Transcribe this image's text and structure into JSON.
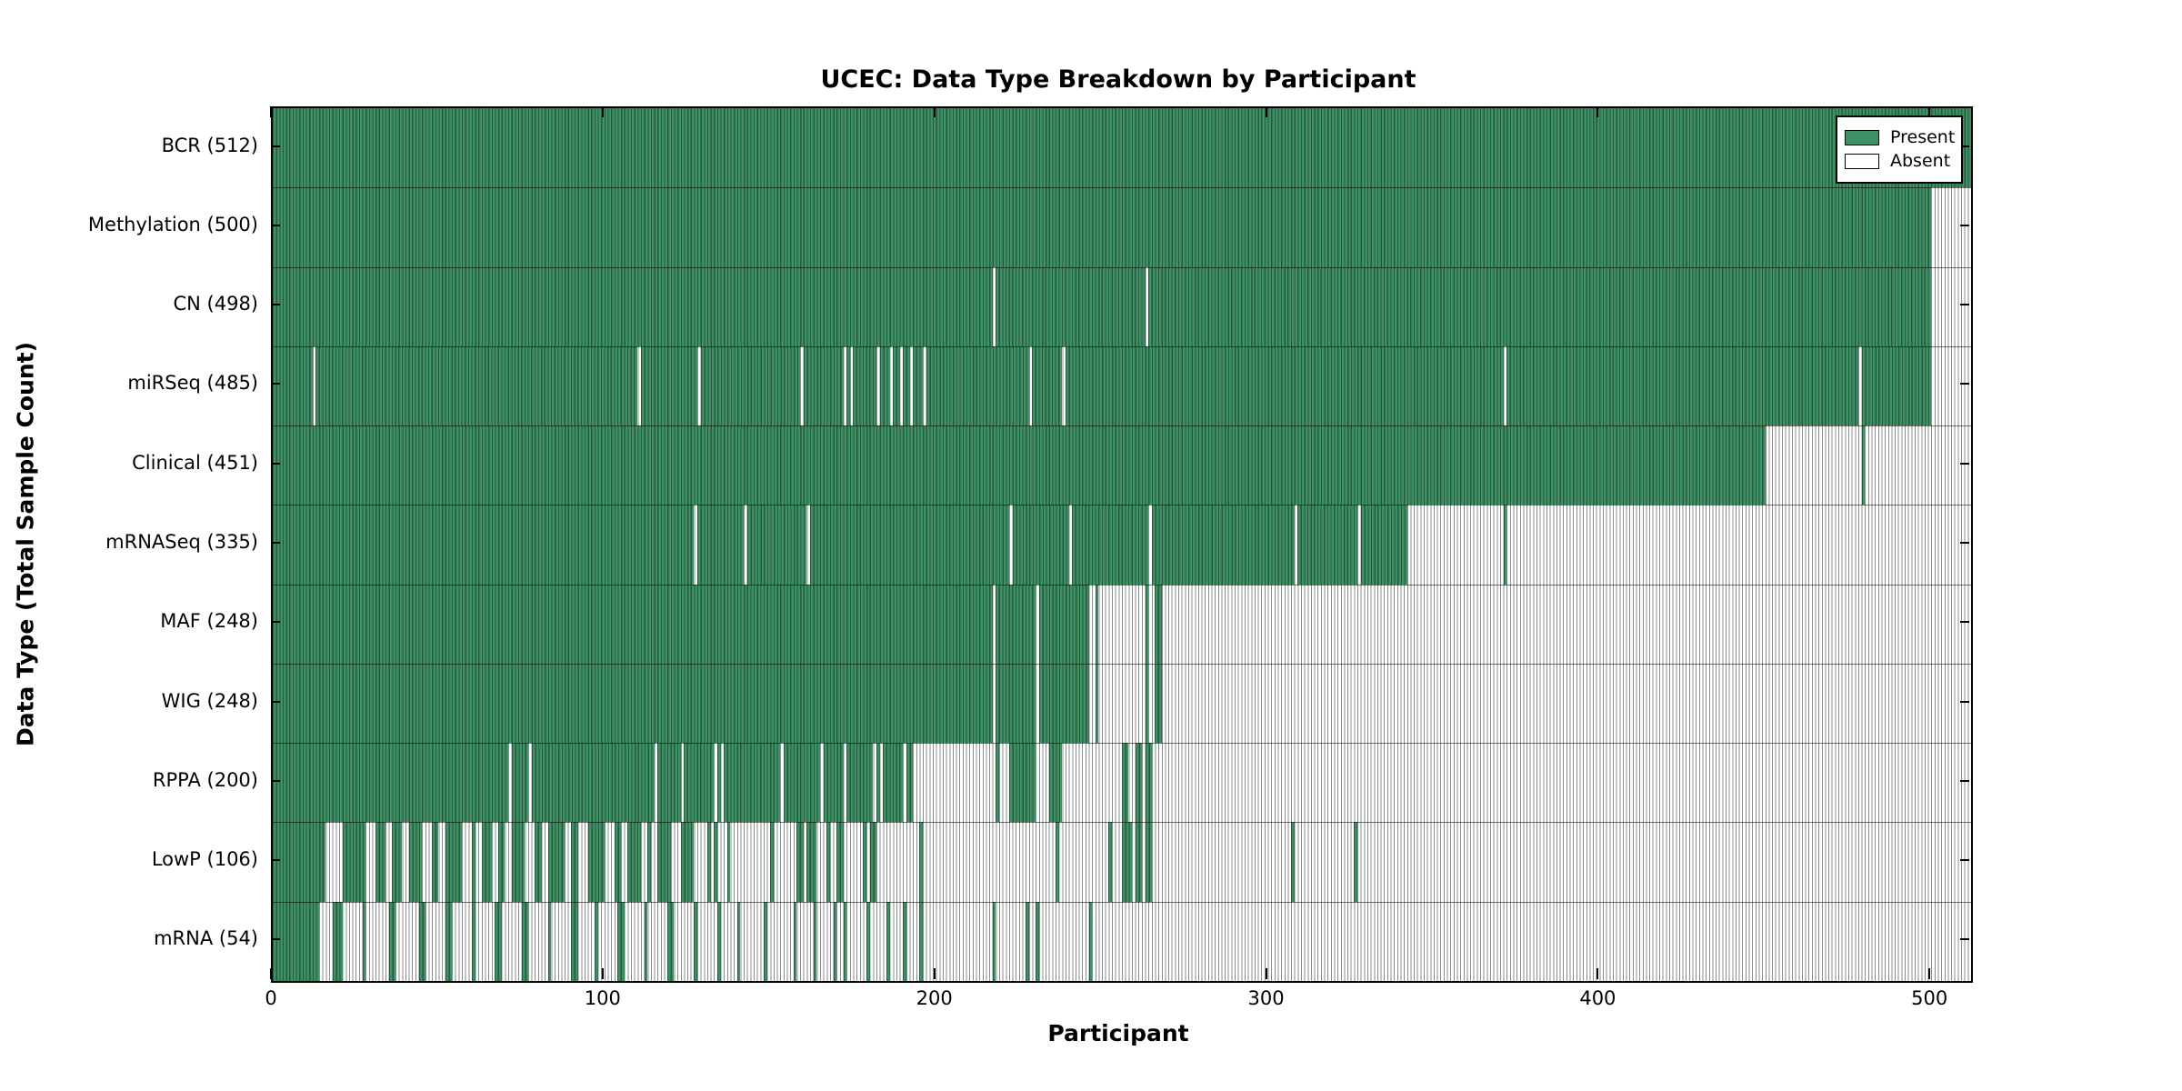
{
  "title": "UCEC: Data Type Breakdown by Participant",
  "xlabel": "Participant",
  "ylabel": "Data Type (Total Sample Count)",
  "legend": {
    "present_label": "Present",
    "absent_label": "Absent"
  },
  "colors": {
    "present_fill": "#3f9064",
    "present_edge": "#235c3c",
    "absent_fill": "#ffffff",
    "absent_edge": "#8c8c8c",
    "axis": "#000000"
  },
  "chart_data": {
    "type": "heatmap",
    "subtype": "presence-absence-matrix",
    "n_participants": 512,
    "x_ticks": [
      0,
      100,
      200,
      300,
      400,
      500
    ],
    "xlim": [
      0,
      512
    ],
    "legend_position": "upper right",
    "rows": [
      {
        "name": "BCR",
        "label": "BCR (512)",
        "count": 512,
        "present_ranges": [
          [
            0,
            511
          ]
        ]
      },
      {
        "name": "Methylation",
        "label": "Methylation (500)",
        "count": 500,
        "present_ranges": [
          [
            0,
            499
          ]
        ]
      },
      {
        "name": "CN",
        "label": "CN (498)",
        "count": 498,
        "present_ranges": [
          [
            0,
            216
          ],
          [
            218,
            262
          ],
          [
            264,
            499
          ]
        ]
      },
      {
        "name": "miRSeq",
        "label": "miRSeq (485)",
        "count": 485,
        "present_ranges": [
          [
            0,
            11
          ],
          [
            13,
            109
          ],
          [
            111,
            127
          ],
          [
            129,
            158
          ],
          [
            160,
            171
          ],
          [
            173,
            173
          ],
          [
            175,
            181
          ],
          [
            183,
            185
          ],
          [
            187,
            188
          ],
          [
            190,
            191
          ],
          [
            193,
            195
          ],
          [
            197,
            227
          ],
          [
            229,
            237
          ],
          [
            239,
            370
          ],
          [
            372,
            477
          ],
          [
            479,
            499
          ]
        ]
      },
      {
        "name": "Clinical",
        "label": "Clinical (451)",
        "count": 451,
        "present_ranges": [
          [
            0,
            449
          ],
          [
            479,
            479
          ]
        ]
      },
      {
        "name": "mRNASeq",
        "label": "mRNASeq (335)",
        "count": 335,
        "present_ranges": [
          [
            0,
            126
          ],
          [
            128,
            141
          ],
          [
            143,
            160
          ],
          [
            162,
            221
          ],
          [
            223,
            239
          ],
          [
            241,
            263
          ],
          [
            265,
            307
          ],
          [
            309,
            326
          ],
          [
            328,
            341
          ],
          [
            371,
            371
          ]
        ]
      },
      {
        "name": "MAF",
        "label": "MAF (248)",
        "count": 248,
        "present_ranges": [
          [
            0,
            216
          ],
          [
            218,
            229
          ],
          [
            231,
            245
          ],
          [
            248,
            248
          ],
          [
            263,
            263
          ],
          [
            266,
            267
          ]
        ]
      },
      {
        "name": "WIG",
        "label": "WIG (248)",
        "count": 248,
        "present_ranges": [
          [
            0,
            216
          ],
          [
            218,
            229
          ],
          [
            231,
            245
          ],
          [
            248,
            248
          ],
          [
            263,
            263
          ],
          [
            266,
            267
          ]
        ]
      },
      {
        "name": "RPPA",
        "label": "RPPA (200)",
        "count": 200,
        "present_ranges": [
          [
            0,
            70
          ],
          [
            72,
            76
          ],
          [
            78,
            114
          ],
          [
            116,
            122
          ],
          [
            124,
            132
          ],
          [
            134,
            134
          ],
          [
            136,
            152
          ],
          [
            154,
            164
          ],
          [
            166,
            171
          ],
          [
            173,
            180
          ],
          [
            182,
            182
          ],
          [
            184,
            189
          ],
          [
            191,
            192
          ],
          [
            218,
            218
          ],
          [
            222,
            229
          ],
          [
            234,
            237
          ],
          [
            256,
            257
          ],
          [
            260,
            261
          ],
          [
            263,
            264
          ]
        ]
      },
      {
        "name": "LowP",
        "label": "LowP (106)",
        "count": 106,
        "present_ranges": [
          [
            0,
            15
          ],
          [
            21,
            27
          ],
          [
            31,
            33
          ],
          [
            36,
            38
          ],
          [
            41,
            44
          ],
          [
            48,
            49
          ],
          [
            52,
            56
          ],
          [
            60,
            60
          ],
          [
            63,
            65
          ],
          [
            68,
            69
          ],
          [
            72,
            75
          ],
          [
            79,
            80
          ],
          [
            83,
            87
          ],
          [
            90,
            91
          ],
          [
            95,
            99
          ],
          [
            103,
            104
          ],
          [
            107,
            110
          ],
          [
            113,
            113
          ],
          [
            116,
            119
          ],
          [
            123,
            126
          ],
          [
            131,
            131
          ],
          [
            133,
            133
          ],
          [
            137,
            137
          ],
          [
            150,
            150
          ],
          [
            158,
            159
          ],
          [
            161,
            163
          ],
          [
            167,
            167
          ],
          [
            170,
            171
          ],
          [
            178,
            178
          ],
          [
            180,
            181
          ],
          [
            195,
            195
          ],
          [
            236,
            236
          ],
          [
            252,
            252
          ],
          [
            256,
            258
          ],
          [
            260,
            261
          ],
          [
            263,
            264
          ],
          [
            307,
            307
          ],
          [
            326,
            326
          ]
        ]
      },
      {
        "name": "mRNA",
        "label": "mRNA (54)",
        "count": 54,
        "present_ranges": [
          [
            0,
            13
          ],
          [
            18,
            20
          ],
          [
            27,
            27
          ],
          [
            35,
            36
          ],
          [
            44,
            45
          ],
          [
            52,
            53
          ],
          [
            60,
            60
          ],
          [
            67,
            68
          ],
          [
            75,
            76
          ],
          [
            83,
            83
          ],
          [
            90,
            91
          ],
          [
            97,
            97
          ],
          [
            104,
            105
          ],
          [
            112,
            112
          ],
          [
            119,
            120
          ],
          [
            127,
            127
          ],
          [
            134,
            134
          ],
          [
            140,
            140
          ],
          [
            148,
            148
          ],
          [
            157,
            157
          ],
          [
            163,
            163
          ],
          [
            169,
            169
          ],
          [
            172,
            172
          ],
          [
            179,
            179
          ],
          [
            185,
            185
          ],
          [
            190,
            190
          ],
          [
            195,
            195
          ],
          [
            217,
            217
          ],
          [
            227,
            227
          ],
          [
            230,
            230
          ],
          [
            246,
            246
          ]
        ]
      }
    ]
  }
}
